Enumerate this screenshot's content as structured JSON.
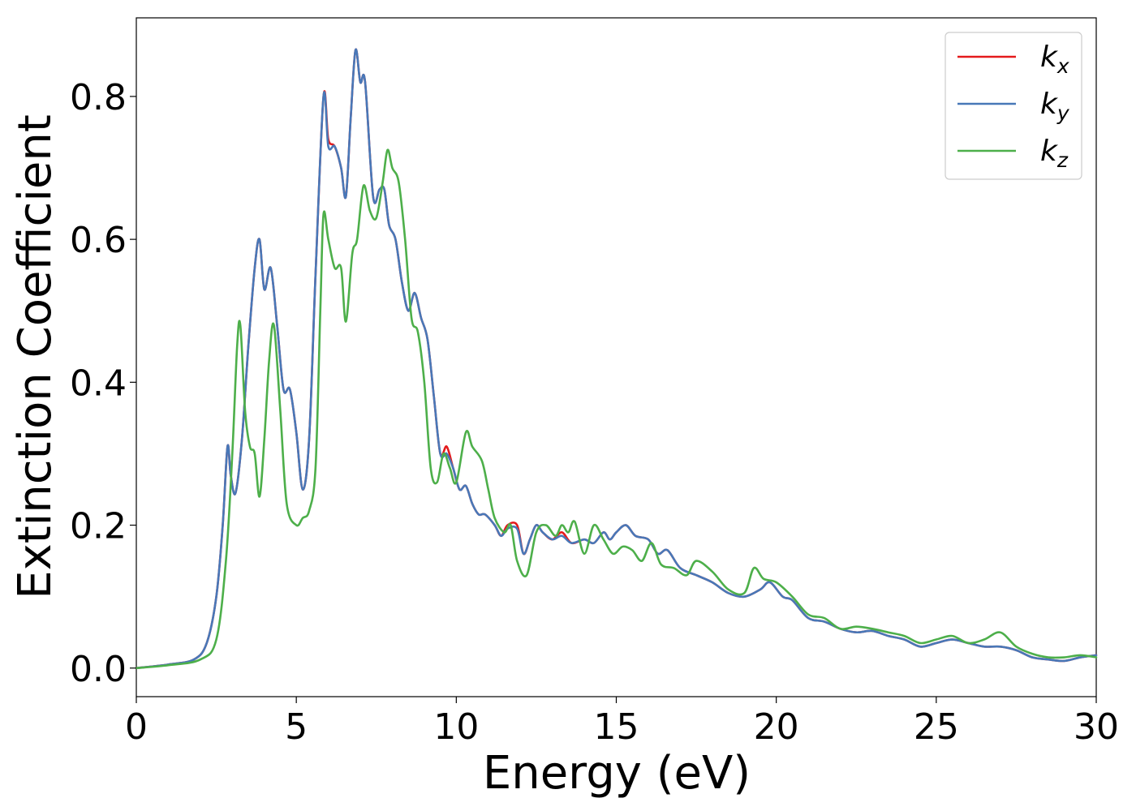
{
  "chart_data": {
    "type": "line",
    "xlabel": "Energy (eV)",
    "ylabel": "Extinction Coefficient",
    "xlim": [
      0,
      30
    ],
    "ylim": [
      -0.04,
      0.91
    ],
    "xticks": [
      0,
      5,
      10,
      15,
      20,
      25,
      30
    ],
    "xtick_labels": [
      "0",
      "5",
      "10",
      "15",
      "20",
      "25",
      "30"
    ],
    "yticks": [
      0.0,
      0.2,
      0.4,
      0.6,
      0.8
    ],
    "ytick_labels": [
      "0.0",
      "0.2",
      "0.4",
      "0.6",
      "0.8"
    ],
    "grid": false,
    "legend_position": "top-right",
    "series": [
      {
        "name": "k_x",
        "legend_base": "k",
        "legend_sub": "x",
        "color": "#e41a1c",
        "points": [
          [
            0,
            0
          ],
          [
            1,
            0.005
          ],
          [
            1.8,
            0.012
          ],
          [
            2.2,
            0.035
          ],
          [
            2.5,
            0.1
          ],
          [
            2.7,
            0.2
          ],
          [
            2.85,
            0.31
          ],
          [
            2.95,
            0.27
          ],
          [
            3.1,
            0.245
          ],
          [
            3.3,
            0.32
          ],
          [
            3.5,
            0.45
          ],
          [
            3.7,
            0.56
          ],
          [
            3.85,
            0.6
          ],
          [
            4.0,
            0.53
          ],
          [
            4.2,
            0.56
          ],
          [
            4.4,
            0.48
          ],
          [
            4.6,
            0.39
          ],
          [
            4.8,
            0.39
          ],
          [
            5.0,
            0.33
          ],
          [
            5.2,
            0.25
          ],
          [
            5.4,
            0.32
          ],
          [
            5.6,
            0.55
          ],
          [
            5.85,
            0.8
          ],
          [
            6.0,
            0.74
          ],
          [
            6.2,
            0.73
          ],
          [
            6.4,
            0.7
          ],
          [
            6.55,
            0.66
          ],
          [
            6.7,
            0.77
          ],
          [
            6.85,
            0.865
          ],
          [
            7.0,
            0.82
          ],
          [
            7.15,
            0.82
          ],
          [
            7.4,
            0.66
          ],
          [
            7.6,
            0.67
          ],
          [
            7.75,
            0.67
          ],
          [
            7.9,
            0.62
          ],
          [
            8.1,
            0.6
          ],
          [
            8.3,
            0.54
          ],
          [
            8.5,
            0.5
          ],
          [
            8.7,
            0.525
          ],
          [
            8.9,
            0.49
          ],
          [
            9.1,
            0.46
          ],
          [
            9.3,
            0.38
          ],
          [
            9.5,
            0.3
          ],
          [
            9.7,
            0.31
          ],
          [
            9.9,
            0.28
          ],
          [
            10.1,
            0.25
          ],
          [
            10.3,
            0.255
          ],
          [
            10.5,
            0.23
          ],
          [
            10.7,
            0.215
          ],
          [
            10.9,
            0.215
          ],
          [
            11.2,
            0.2
          ],
          [
            11.4,
            0.185
          ],
          [
            11.6,
            0.2
          ],
          [
            11.9,
            0.2
          ],
          [
            12.1,
            0.16
          ],
          [
            12.3,
            0.18
          ],
          [
            12.5,
            0.2
          ],
          [
            12.7,
            0.19
          ],
          [
            13.0,
            0.18
          ],
          [
            13.3,
            0.19
          ],
          [
            13.6,
            0.175
          ],
          [
            14.0,
            0.18
          ],
          [
            14.3,
            0.175
          ],
          [
            14.6,
            0.19
          ],
          [
            14.8,
            0.18
          ],
          [
            15.0,
            0.19
          ],
          [
            15.3,
            0.2
          ],
          [
            15.6,
            0.185
          ],
          [
            16.0,
            0.18
          ],
          [
            16.3,
            0.16
          ],
          [
            16.6,
            0.165
          ],
          [
            17.0,
            0.14
          ],
          [
            17.5,
            0.13
          ],
          [
            18.0,
            0.12
          ],
          [
            18.5,
            0.105
          ],
          [
            19.0,
            0.1
          ],
          [
            19.5,
            0.11
          ],
          [
            19.8,
            0.12
          ],
          [
            20.2,
            0.1
          ],
          [
            20.5,
            0.095
          ],
          [
            21.0,
            0.07
          ],
          [
            21.5,
            0.065
          ],
          [
            22.0,
            0.055
          ],
          [
            22.5,
            0.05
          ],
          [
            23.0,
            0.052
          ],
          [
            23.5,
            0.045
          ],
          [
            24.0,
            0.04
          ],
          [
            24.5,
            0.03
          ],
          [
            25.0,
            0.035
          ],
          [
            25.5,
            0.04
          ],
          [
            26.0,
            0.035
          ],
          [
            26.5,
            0.03
          ],
          [
            27.0,
            0.03
          ],
          [
            27.5,
            0.025
          ],
          [
            28.0,
            0.015
          ],
          [
            28.5,
            0.012
          ],
          [
            29.0,
            0.01
          ],
          [
            29.5,
            0.015
          ],
          [
            30,
            0.018
          ]
        ]
      },
      {
        "name": "k_y",
        "legend_base": "k",
        "legend_sub": "y",
        "color": "#4878b8",
        "points": [
          [
            0,
            0
          ],
          [
            1,
            0.005
          ],
          [
            1.8,
            0.012
          ],
          [
            2.2,
            0.035
          ],
          [
            2.5,
            0.1
          ],
          [
            2.7,
            0.2
          ],
          [
            2.85,
            0.31
          ],
          [
            2.95,
            0.27
          ],
          [
            3.1,
            0.245
          ],
          [
            3.3,
            0.32
          ],
          [
            3.5,
            0.45
          ],
          [
            3.7,
            0.56
          ],
          [
            3.85,
            0.6
          ],
          [
            4.0,
            0.53
          ],
          [
            4.2,
            0.56
          ],
          [
            4.4,
            0.48
          ],
          [
            4.6,
            0.39
          ],
          [
            4.8,
            0.39
          ],
          [
            5.0,
            0.33
          ],
          [
            5.2,
            0.25
          ],
          [
            5.4,
            0.32
          ],
          [
            5.6,
            0.55
          ],
          [
            5.85,
            0.8
          ],
          [
            6.0,
            0.73
          ],
          [
            6.2,
            0.73
          ],
          [
            6.4,
            0.7
          ],
          [
            6.55,
            0.66
          ],
          [
            6.7,
            0.77
          ],
          [
            6.85,
            0.865
          ],
          [
            7.0,
            0.82
          ],
          [
            7.15,
            0.82
          ],
          [
            7.4,
            0.66
          ],
          [
            7.6,
            0.67
          ],
          [
            7.75,
            0.67
          ],
          [
            7.9,
            0.62
          ],
          [
            8.1,
            0.6
          ],
          [
            8.3,
            0.54
          ],
          [
            8.5,
            0.5
          ],
          [
            8.7,
            0.525
          ],
          [
            8.9,
            0.49
          ],
          [
            9.1,
            0.46
          ],
          [
            9.3,
            0.38
          ],
          [
            9.5,
            0.3
          ],
          [
            9.7,
            0.3
          ],
          [
            9.9,
            0.28
          ],
          [
            10.1,
            0.25
          ],
          [
            10.3,
            0.255
          ],
          [
            10.5,
            0.23
          ],
          [
            10.7,
            0.215
          ],
          [
            10.9,
            0.215
          ],
          [
            11.2,
            0.2
          ],
          [
            11.4,
            0.185
          ],
          [
            11.6,
            0.195
          ],
          [
            11.9,
            0.195
          ],
          [
            12.1,
            0.16
          ],
          [
            12.3,
            0.18
          ],
          [
            12.5,
            0.2
          ],
          [
            12.7,
            0.19
          ],
          [
            13.0,
            0.18
          ],
          [
            13.3,
            0.185
          ],
          [
            13.6,
            0.175
          ],
          [
            14.0,
            0.18
          ],
          [
            14.3,
            0.175
          ],
          [
            14.6,
            0.19
          ],
          [
            14.8,
            0.18
          ],
          [
            15.0,
            0.19
          ],
          [
            15.3,
            0.2
          ],
          [
            15.6,
            0.185
          ],
          [
            16.0,
            0.18
          ],
          [
            16.3,
            0.16
          ],
          [
            16.6,
            0.165
          ],
          [
            17.0,
            0.14
          ],
          [
            17.5,
            0.13
          ],
          [
            18.0,
            0.12
          ],
          [
            18.5,
            0.105
          ],
          [
            19.0,
            0.1
          ],
          [
            19.5,
            0.11
          ],
          [
            19.8,
            0.12
          ],
          [
            20.2,
            0.1
          ],
          [
            20.5,
            0.095
          ],
          [
            21.0,
            0.07
          ],
          [
            21.5,
            0.065
          ],
          [
            22.0,
            0.055
          ],
          [
            22.5,
            0.05
          ],
          [
            23.0,
            0.052
          ],
          [
            23.5,
            0.045
          ],
          [
            24.0,
            0.04
          ],
          [
            24.5,
            0.03
          ],
          [
            25.0,
            0.035
          ],
          [
            25.5,
            0.04
          ],
          [
            26.0,
            0.035
          ],
          [
            26.5,
            0.03
          ],
          [
            27.0,
            0.03
          ],
          [
            27.5,
            0.025
          ],
          [
            28.0,
            0.015
          ],
          [
            28.5,
            0.012
          ],
          [
            29.0,
            0.01
          ],
          [
            29.5,
            0.015
          ],
          [
            30,
            0.018
          ]
        ]
      },
      {
        "name": "k_z",
        "legend_base": "k",
        "legend_sub": "z",
        "color": "#4daf4a",
        "points": [
          [
            0,
            0
          ],
          [
            1,
            0.004
          ],
          [
            2.0,
            0.012
          ],
          [
            2.5,
            0.04
          ],
          [
            2.8,
            0.15
          ],
          [
            3.0,
            0.3
          ],
          [
            3.15,
            0.45
          ],
          [
            3.25,
            0.48
          ],
          [
            3.4,
            0.36
          ],
          [
            3.55,
            0.31
          ],
          [
            3.7,
            0.3
          ],
          [
            3.85,
            0.24
          ],
          [
            4.0,
            0.32
          ],
          [
            4.15,
            0.43
          ],
          [
            4.3,
            0.48
          ],
          [
            4.5,
            0.36
          ],
          [
            4.7,
            0.23
          ],
          [
            5.0,
            0.2
          ],
          [
            5.2,
            0.21
          ],
          [
            5.4,
            0.22
          ],
          [
            5.6,
            0.28
          ],
          [
            5.75,
            0.5
          ],
          [
            5.85,
            0.635
          ],
          [
            6.0,
            0.6
          ],
          [
            6.2,
            0.56
          ],
          [
            6.4,
            0.56
          ],
          [
            6.55,
            0.485
          ],
          [
            6.75,
            0.58
          ],
          [
            6.9,
            0.6
          ],
          [
            7.1,
            0.675
          ],
          [
            7.3,
            0.64
          ],
          [
            7.5,
            0.63
          ],
          [
            7.7,
            0.68
          ],
          [
            7.85,
            0.725
          ],
          [
            8.0,
            0.7
          ],
          [
            8.2,
            0.68
          ],
          [
            8.4,
            0.6
          ],
          [
            8.6,
            0.49
          ],
          [
            8.8,
            0.47
          ],
          [
            9.0,
            0.4
          ],
          [
            9.2,
            0.28
          ],
          [
            9.4,
            0.26
          ],
          [
            9.6,
            0.3
          ],
          [
            9.8,
            0.28
          ],
          [
            10.0,
            0.26
          ],
          [
            10.3,
            0.33
          ],
          [
            10.5,
            0.31
          ],
          [
            10.8,
            0.29
          ],
          [
            11.0,
            0.25
          ],
          [
            11.2,
            0.21
          ],
          [
            11.5,
            0.19
          ],
          [
            11.7,
            0.2
          ],
          [
            11.9,
            0.15
          ],
          [
            12.2,
            0.13
          ],
          [
            12.5,
            0.19
          ],
          [
            12.8,
            0.2
          ],
          [
            13.1,
            0.185
          ],
          [
            13.3,
            0.2
          ],
          [
            13.5,
            0.19
          ],
          [
            13.7,
            0.205
          ],
          [
            14.0,
            0.16
          ],
          [
            14.3,
            0.2
          ],
          [
            14.6,
            0.18
          ],
          [
            14.9,
            0.16
          ],
          [
            15.2,
            0.17
          ],
          [
            15.5,
            0.165
          ],
          [
            15.8,
            0.15
          ],
          [
            16.1,
            0.175
          ],
          [
            16.4,
            0.145
          ],
          [
            16.8,
            0.14
          ],
          [
            17.2,
            0.13
          ],
          [
            17.5,
            0.15
          ],
          [
            18.0,
            0.135
          ],
          [
            18.5,
            0.11
          ],
          [
            19.0,
            0.105
          ],
          [
            19.3,
            0.14
          ],
          [
            19.6,
            0.125
          ],
          [
            20.0,
            0.12
          ],
          [
            20.5,
            0.1
          ],
          [
            21.0,
            0.075
          ],
          [
            21.5,
            0.07
          ],
          [
            22.0,
            0.055
          ],
          [
            22.5,
            0.058
          ],
          [
            23.0,
            0.055
          ],
          [
            23.5,
            0.05
          ],
          [
            24.0,
            0.045
          ],
          [
            24.5,
            0.035
          ],
          [
            25.0,
            0.04
          ],
          [
            25.5,
            0.045
          ],
          [
            26.0,
            0.035
          ],
          [
            26.5,
            0.04
          ],
          [
            27.0,
            0.05
          ],
          [
            27.5,
            0.03
          ],
          [
            28.0,
            0.02
          ],
          [
            28.5,
            0.015
          ],
          [
            29.0,
            0.015
          ],
          [
            29.5,
            0.018
          ],
          [
            30,
            0.015
          ]
        ]
      }
    ]
  }
}
